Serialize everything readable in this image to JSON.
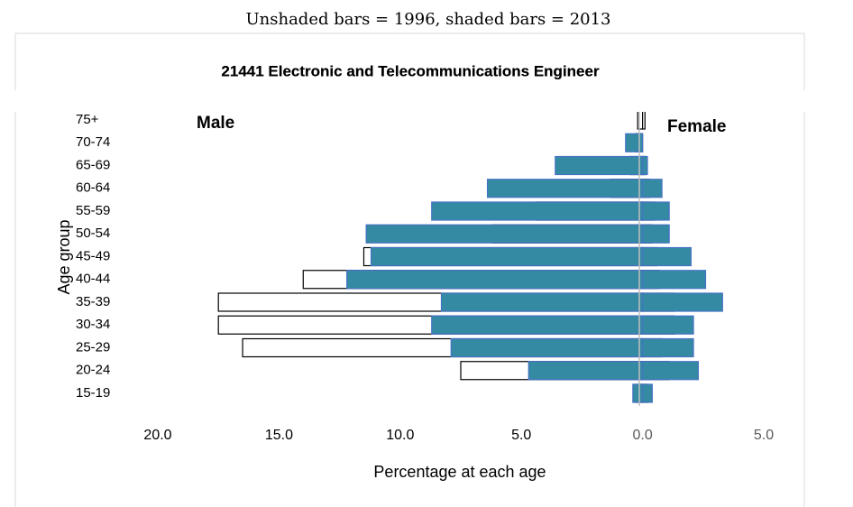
{
  "chart_data": {
    "type": "pyramid",
    "note": "Unshaded bars = 1996, shaded bars = 2013",
    "title": "21441 Electronic and Telecommunications Engineer",
    "left_label": "Male",
    "right_label": "Female",
    "xlabel": "Percentage at each age",
    "ylabel": "Age group",
    "categories": [
      "75+",
      "70-74",
      "65-69",
      "60-64",
      "55-59",
      "50-54",
      "45-49",
      "40-44",
      "35-39",
      "30-34",
      "25-29",
      "20-24",
      "15-19"
    ],
    "series": [
      {
        "fill": "#ffffff",
        "stroke": "#000000",
        "values": [
          -0.2,
          -0.3,
          -0.5,
          -1.3,
          -4.4,
          -6.2,
          -11.5,
          -14.0,
          -17.5,
          -17.5,
          -16.5,
          -7.5,
          -0.3
        ]
      },
      {
        "fill": "#ffffff",
        "stroke": "#000000",
        "values": [
          0.1,
          0.0,
          0.1,
          0.3,
          0.5,
          0.4,
          0.6,
          0.7,
          1.3,
          1.3,
          0.8,
          1.1,
          0.2
        ]
      },
      {
        "fill": "#358aa3",
        "stroke": "#4472c4",
        "values": [
          0.0,
          -0.7,
          -3.6,
          -6.4,
          -8.7,
          -11.4,
          -11.2,
          -12.2,
          -8.3,
          -8.7,
          -7.9,
          -4.7,
          -0.4
        ]
      },
      {
        "fill": "#358aa3",
        "stroke": "#4472c4",
        "values": [
          0.0,
          0.0,
          0.2,
          0.8,
          1.1,
          1.1,
          2.0,
          2.6,
          3.3,
          2.1,
          2.1,
          2.3,
          0.4
        ]
      }
    ],
    "xlim": [
      -20,
      5
    ],
    "xticks": [
      {
        "value": -20,
        "label": "20.0"
      },
      {
        "value": -15,
        "label": "15.0"
      },
      {
        "value": -10,
        "label": "10.0"
      },
      {
        "value": -5,
        "label": "5.0"
      },
      {
        "value": 0,
        "label": "0.0"
      },
      {
        "value": 5,
        "label": "5.0"
      }
    ]
  }
}
